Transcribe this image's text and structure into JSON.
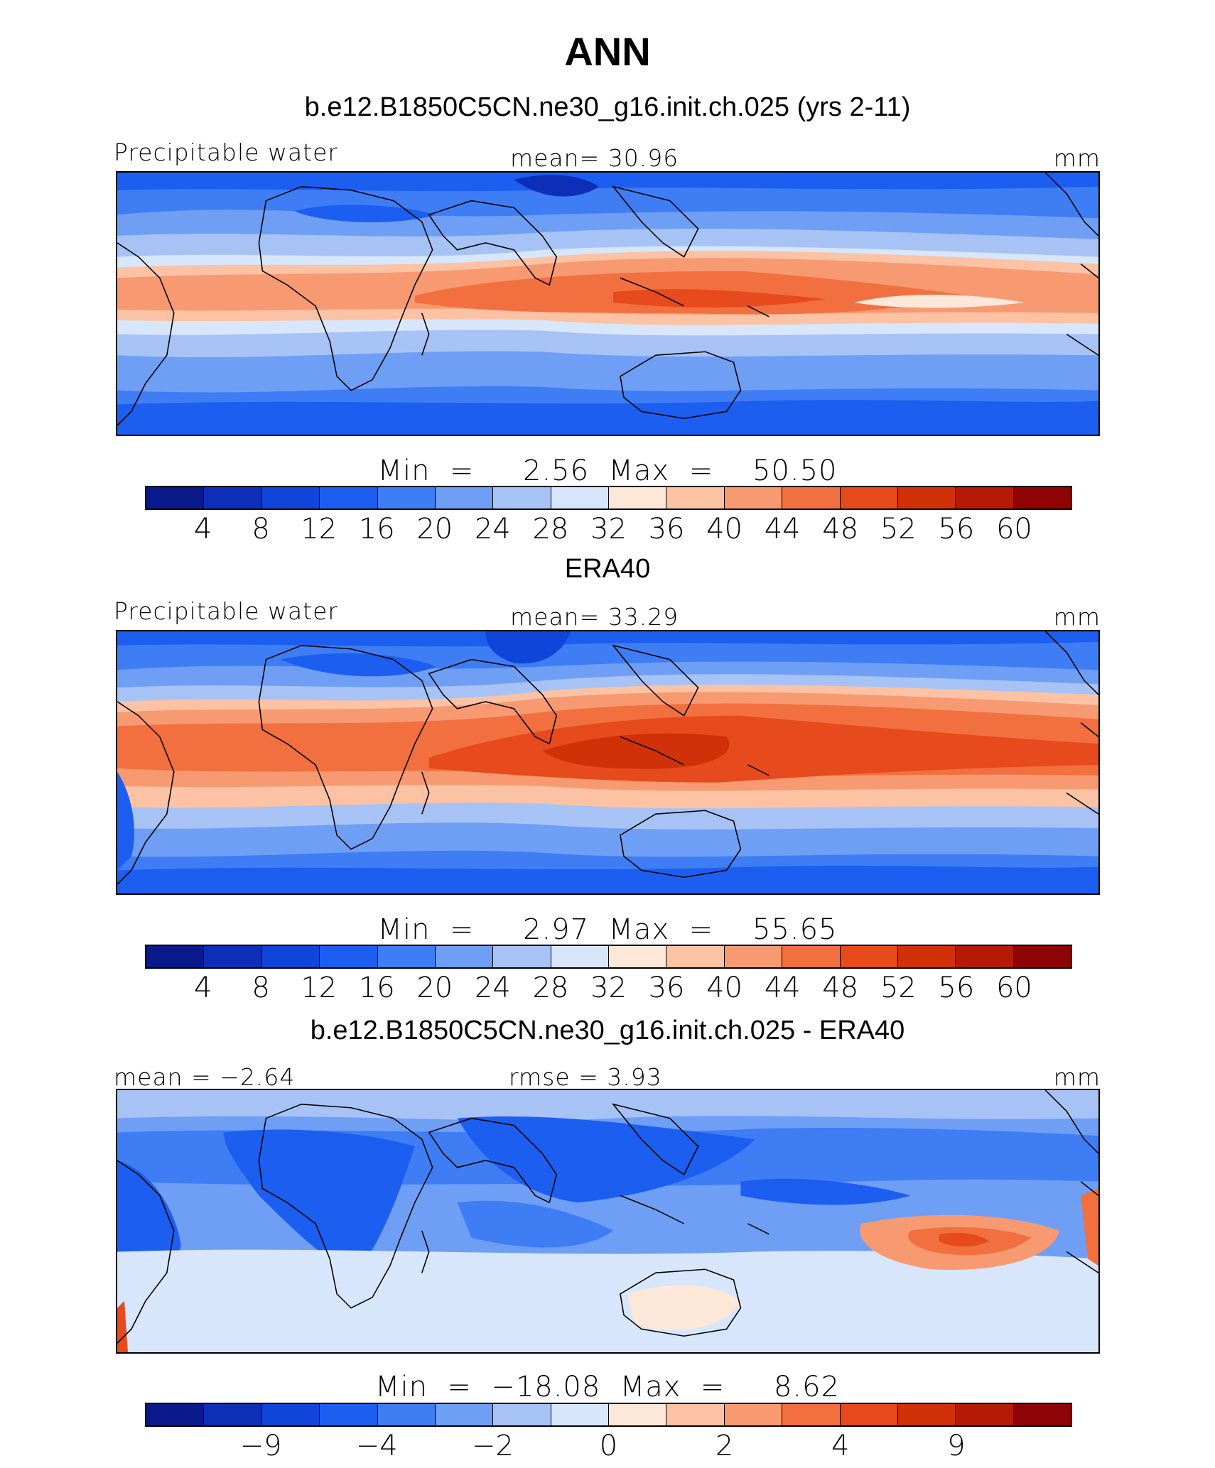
{
  "title": "ANN",
  "colors": [
    "#0a1a8a",
    "#0d2fb8",
    "#0f45d8",
    "#1c5ef0",
    "#3f7df5",
    "#6f9ef5",
    "#a7c3f6",
    "#d8e6fb",
    "#fde7d8",
    "#fbc2a4",
    "#f79a72",
    "#f2703f",
    "#e74a1c",
    "#d03108",
    "#b41a06",
    "#8e0303"
  ],
  "panels": [
    {
      "title": "b.e12.B1850C5CN.ne30_g16.init.ch.025 (yrs 2-11)",
      "left_label": "Precipitable  water",
      "center_label": "mean=   30.96",
      "right_label": "mm",
      "minmax": "Min  =     2.56  Max  =    50.50",
      "ticks": [
        "4",
        "8",
        "12",
        "16",
        "20",
        "24",
        "28",
        "32",
        "36",
        "40",
        "44",
        "48",
        "52",
        "56",
        "60"
      ]
    },
    {
      "title": "ERA40",
      "left_label": "Precipitable  water",
      "center_label": "mean=   33.29",
      "right_label": "mm",
      "minmax": "Min  =     2.97  Max  =    55.65",
      "ticks": [
        "4",
        "8",
        "12",
        "16",
        "20",
        "24",
        "28",
        "32",
        "36",
        "40",
        "44",
        "48",
        "52",
        "56",
        "60"
      ]
    },
    {
      "title": "b.e12.B1850C5CN.ne30_g16.init.ch.025 - ERA40",
      "left_label": "mean  =   −2.64",
      "center_label": "rmse  =     3.93",
      "right_label": "mm",
      "minmax": "Min  =  −18.08  Max  =     8.62",
      "ticks": [
        "−9",
        "",
        "−4",
        "",
        "−2",
        "",
        "0",
        "",
        "2",
        "",
        "4",
        "",
        "9"
      ]
    }
  ]
}
